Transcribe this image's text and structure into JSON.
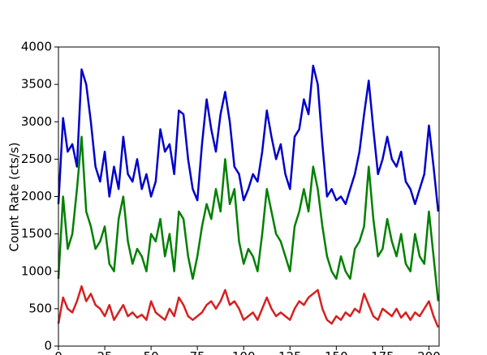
{
  "chart_data": {
    "type": "line",
    "y_label": "Count Rate (cts/s)",
    "x": [
      0,
      2.5,
      5,
      7.5,
      10,
      12.5,
      15,
      17.5,
      20,
      22.5,
      25,
      27.5,
      30,
      32.5,
      35,
      37.5,
      40,
      42.5,
      45,
      47.5,
      50,
      52.5,
      55,
      57.5,
      60,
      62.5,
      65,
      67.5,
      70,
      72.5,
      75,
      77.5,
      80,
      82.5,
      85,
      87.5,
      90,
      92.5,
      95,
      97.5,
      100,
      102.5,
      105,
      107.5,
      110,
      112.5,
      115,
      117.5,
      120,
      122.5,
      125,
      127.5,
      130,
      132.5,
      135,
      137.5,
      140,
      142.5,
      145,
      147.5,
      150,
      152.5,
      155,
      157.5,
      160,
      162.5,
      165,
      167.5,
      170,
      172.5,
      175,
      177.5,
      180,
      182.5,
      185,
      187.5,
      190,
      192.5,
      195,
      197.5,
      200,
      202.5,
      205
    ],
    "series": [
      {
        "color": "#0000cc",
        "values": [
          1900,
          3050,
          2600,
          2700,
          2400,
          3700,
          3500,
          3000,
          2400,
          2200,
          2600,
          2000,
          2400,
          2100,
          2800,
          2300,
          2200,
          2500,
          2100,
          2300,
          2000,
          2200,
          2900,
          2600,
          2700,
          2300,
          3150,
          3100,
          2500,
          2100,
          1950,
          2700,
          3300,
          2900,
          2600,
          3100,
          3400,
          3000,
          2400,
          2300,
          1950,
          2100,
          2300,
          2200,
          2600,
          3150,
          2800,
          2500,
          2700,
          2300,
          2100,
          2800,
          2900,
          3300,
          3100,
          3750,
          3500,
          2700,
          2000,
          2100,
          1950,
          2000,
          1900,
          2100,
          2300,
          2600,
          3100,
          3550,
          2900,
          2300,
          2500,
          2800,
          2500,
          2400,
          2600,
          2200,
          2100,
          1900,
          2100,
          2300,
          2950,
          2400,
          1800
        ]
      },
      {
        "color": "#008000",
        "values": [
          900,
          2000,
          1300,
          1500,
          2100,
          2800,
          1800,
          1600,
          1300,
          1400,
          1600,
          1100,
          1000,
          1700,
          2000,
          1400,
          1100,
          1300,
          1200,
          1000,
          1500,
          1400,
          1700,
          1200,
          1500,
          1000,
          1800,
          1700,
          1200,
          900,
          1200,
          1600,
          1900,
          1700,
          2100,
          1800,
          2500,
          1900,
          2100,
          1400,
          1100,
          1300,
          1200,
          1000,
          1500,
          2100,
          1800,
          1500,
          1400,
          1200,
          1000,
          1600,
          1800,
          2100,
          1800,
          2400,
          2100,
          1600,
          1200,
          1000,
          900,
          1200,
          1000,
          900,
          1300,
          1400,
          1600,
          2400,
          1700,
          1200,
          1300,
          1700,
          1400,
          1200,
          1500,
          1100,
          1000,
          1500,
          1200,
          1100,
          1800,
          1200,
          600
        ]
      },
      {
        "color": "#d62020",
        "values": [
          300,
          650,
          500,
          450,
          600,
          800,
          600,
          700,
          550,
          500,
          400,
          550,
          350,
          450,
          550,
          400,
          450,
          380,
          420,
          350,
          600,
          450,
          400,
          350,
          500,
          400,
          650,
          550,
          400,
          350,
          400,
          450,
          550,
          600,
          500,
          600,
          750,
          550,
          600,
          500,
          350,
          400,
          450,
          350,
          500,
          650,
          500,
          400,
          450,
          400,
          350,
          500,
          600,
          550,
          650,
          700,
          750,
          500,
          350,
          300,
          400,
          350,
          450,
          400,
          500,
          450,
          700,
          550,
          400,
          350,
          500,
          450,
          400,
          500,
          380,
          450,
          350,
          450,
          400,
          500,
          600,
          400,
          250
        ]
      }
    ],
    "xlim": [
      0,
      205.5
    ],
    "xticks": [
      0,
      25,
      50,
      75,
      100,
      125,
      150,
      175,
      200
    ],
    "ylim": [
      0,
      4000
    ],
    "yticks": [
      0,
      500,
      1000,
      1500,
      2000,
      2500,
      3000,
      3500,
      4000
    ]
  }
}
